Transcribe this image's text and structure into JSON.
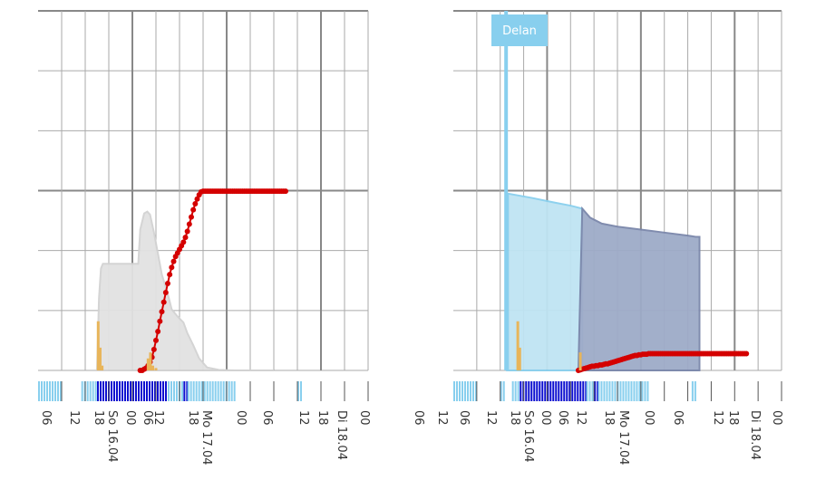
{
  "colors": {
    "grid_major": "#888888",
    "grid_minor": "#aaaaaa",
    "gray_area": "#e2e2e2",
    "gray_area_stroke": "#d2d2d2",
    "red_series": "#d40000",
    "orange_bars": "#e8b55a",
    "light_blue": "#88cfee",
    "light_blue_fill": "#bfe4f3",
    "slate_fill": "#9eabc8",
    "slate_stroke": "#7a86aa",
    "dark_blue": "#0d0fd0",
    "strip_light": "#88cfee"
  },
  "time_axis": {
    "tick_labels": [
      "06",
      "12",
      "18",
      "So 16.04",
      "00",
      "06",
      "12",
      "18",
      "Mo 17.04",
      "00",
      "06",
      "12",
      "18",
      "Di 18.04",
      "00",
      "06",
      "12"
    ]
  },
  "right_panel": {
    "badge_label": "Delan"
  },
  "chart_data": [
    {
      "type": "area",
      "title": "",
      "x_unit": "hours since 15.04 00:00",
      "xlim": [
        0,
        84
      ],
      "x_ticks": [
        6,
        12,
        18,
        24,
        30,
        36,
        42,
        48,
        54,
        60,
        66,
        72,
        78,
        84
      ],
      "x_major_ticks": [
        24,
        48,
        72
      ],
      "ylim": [
        0,
        6
      ],
      "series": [
        {
          "kind": "area",
          "x": [
            15,
            15.5,
            16,
            16.5,
            20,
            25.5,
            26,
            27,
            27.8,
            28.5,
            29.5,
            30.5,
            31.5,
            33,
            34,
            35.5,
            37,
            38,
            39.5,
            41,
            43,
            46,
            50,
            54,
            60
          ],
          "y": [
            0,
            1.2,
            1.7,
            1.78,
            1.78,
            1.78,
            2.35,
            2.62,
            2.65,
            2.6,
            2.3,
            1.95,
            1.6,
            1.28,
            1.02,
            0.9,
            0.8,
            0.62,
            0.42,
            0.2,
            0.05,
            0.01,
            0,
            0,
            0
          ]
        },
        {
          "kind": "line_markers",
          "x": [
            26,
            26.5,
            27,
            27.5,
            28,
            28.5,
            29,
            29.5,
            30,
            30.5,
            31,
            31.5,
            32,
            32.5,
            33,
            33.5,
            34,
            34.5,
            35,
            35.5,
            36,
            36.5,
            37,
            37.5,
            38,
            38.5,
            39,
            39.5,
            40,
            40.5,
            41,
            41.5,
            42,
            42.5,
            43,
            43.5,
            44,
            44.5,
            45,
            45.5,
            46,
            46.5,
            47,
            47.5,
            48,
            48.5,
            49,
            49.5,
            50,
            50.5,
            51,
            51.5,
            52,
            52.5,
            53,
            53.5,
            54,
            54.5,
            55,
            55.5,
            56,
            56.5,
            57,
            57.5,
            58,
            58.5,
            59,
            59.5,
            60,
            60.5,
            61,
            61.5,
            62,
            62.5,
            63
          ],
          "y": [
            0,
            0,
            0.02,
            0.04,
            0.08,
            0.14,
            0.22,
            0.35,
            0.5,
            0.65,
            0.82,
            0.98,
            1.14,
            1.3,
            1.45,
            1.6,
            1.72,
            1.82,
            1.9,
            1.96,
            2.02,
            2.08,
            2.14,
            2.22,
            2.32,
            2.44,
            2.56,
            2.68,
            2.78,
            2.86,
            2.93,
            2.98,
            2.99,
            2.99,
            2.99,
            2.99,
            2.99,
            2.99,
            2.99,
            2.99,
            2.99,
            2.99,
            2.99,
            2.99,
            2.99,
            2.99,
            2.99,
            2.99,
            2.99,
            2.99,
            2.99,
            2.99,
            2.99,
            2.99,
            2.99,
            2.99,
            2.99,
            2.99,
            2.99,
            2.99,
            2.99,
            2.99,
            2.99,
            2.99,
            2.99,
            2.99,
            2.99,
            2.99,
            2.99,
            2.99,
            2.99,
            2.99,
            2.99,
            2.99,
            2.99
          ]
        },
        {
          "kind": "bars",
          "x": [
            15.3,
            15.8,
            16.3,
            28.0,
            28.6,
            29.2,
            30.0
          ],
          "y": [
            0.82,
            0.38,
            0.08,
            0.2,
            0.3,
            0.08,
            0.04
          ]
        }
      ],
      "strip": {
        "segments": [
          {
            "from": 0,
            "to": 6,
            "level": "light"
          },
          {
            "from": 11,
            "to": 15,
            "level": "light"
          },
          {
            "from": 15,
            "to": 33,
            "level": "dark"
          },
          {
            "from": 33,
            "to": 37,
            "level": "light"
          },
          {
            "from": 37,
            "to": 38,
            "level": "dark"
          },
          {
            "from": 38,
            "to": 50,
            "level": "light"
          },
          {
            "from": 66,
            "to": 66.8,
            "level": "light"
          }
        ]
      }
    },
    {
      "type": "area",
      "title": "",
      "x_unit": "hours since 15.04 00:00",
      "xlim": [
        0,
        84
      ],
      "x_ticks": [
        6,
        12,
        18,
        24,
        30,
        36,
        42,
        48,
        54,
        60,
        66,
        72,
        78,
        84
      ],
      "x_major_ticks": [
        24,
        48,
        72
      ],
      "ylim": [
        0,
        6
      ],
      "series": [
        {
          "kind": "area",
          "x": [
            13.5,
            14,
            14,
            20,
            26,
            30,
            33
          ],
          "y": [
            0,
            0,
            2.95,
            2.88,
            2.8,
            2.75,
            2.7
          ],
          "close_to": [
            33,
            0
          ]
        },
        {
          "kind": "area",
          "x": [
            32,
            33,
            35,
            38,
            42,
            48,
            54,
            60,
            62,
            63,
            63
          ],
          "y": [
            0,
            2.7,
            2.55,
            2.45,
            2.4,
            2.35,
            2.3,
            2.25,
            2.23,
            2.23,
            0
          ]
        },
        {
          "kind": "spike",
          "x": [
            13.5,
            13.5
          ],
          "y": [
            0,
            6
          ]
        },
        {
          "kind": "line_markers",
          "x": [
            32,
            32.5,
            33,
            33.5,
            34,
            34.5,
            35,
            35.5,
            36,
            36.5,
            37,
            37.5,
            38,
            38.5,
            39,
            39.5,
            40,
            40.5,
            41,
            41.5,
            42,
            42.5,
            43,
            43.5,
            44,
            44.5,
            45,
            45.5,
            46,
            46.5,
            47,
            47.5,
            48,
            48.5,
            49,
            49.5,
            50,
            50.5,
            51,
            51.5,
            52,
            52.5,
            53,
            53.5,
            54,
            54.5,
            55,
            55.5,
            56,
            56.5,
            57,
            57.5,
            58,
            58.5,
            59,
            59.5,
            60,
            60.5,
            61,
            61.5,
            62,
            62.5,
            63,
            63.5,
            64,
            64.5,
            65,
            65.5,
            66,
            66.5,
            67,
            67.5,
            68,
            68.5,
            69,
            69.5,
            70,
            70.5,
            71,
            71.5,
            72,
            72.5,
            73,
            73.5,
            74,
            74.5,
            75
          ],
          "y": [
            0,
            0.01,
            0.02,
            0.03,
            0.04,
            0.05,
            0.06,
            0.07,
            0.07,
            0.08,
            0.08,
            0.09,
            0.09,
            0.1,
            0.11,
            0.11,
            0.12,
            0.13,
            0.14,
            0.15,
            0.16,
            0.17,
            0.18,
            0.19,
            0.2,
            0.21,
            0.22,
            0.23,
            0.24,
            0.25,
            0.25,
            0.26,
            0.26,
            0.27,
            0.27,
            0.27,
            0.28,
            0.28,
            0.28,
            0.28,
            0.28,
            0.28,
            0.28,
            0.28,
            0.28,
            0.28,
            0.28,
            0.28,
            0.28,
            0.28,
            0.28,
            0.28,
            0.28,
            0.28,
            0.28,
            0.28,
            0.28,
            0.28,
            0.28,
            0.28,
            0.28,
            0.28,
            0.28,
            0.28,
            0.28,
            0.28,
            0.28,
            0.28,
            0.28,
            0.28,
            0.28,
            0.28,
            0.28,
            0.28,
            0.28,
            0.28,
            0.28,
            0.28,
            0.28,
            0.28,
            0.28,
            0.28,
            0.28,
            0.28,
            0.28,
            0.28,
            0.28
          ]
        },
        {
          "kind": "bars",
          "x": [
            16.5,
            17,
            32.5
          ],
          "y": [
            0.82,
            0.38,
            0.3
          ]
        }
      ],
      "strip": {
        "segments": [
          {
            "from": 0,
            "to": 6,
            "level": "light"
          },
          {
            "from": 12,
            "to": 13,
            "level": "light"
          },
          {
            "from": 15,
            "to": 17,
            "level": "light"
          },
          {
            "from": 17,
            "to": 34,
            "level": "dark"
          },
          {
            "from": 34,
            "to": 36,
            "level": "light"
          },
          {
            "from": 36,
            "to": 37,
            "level": "dark"
          },
          {
            "from": 37,
            "to": 50,
            "level": "light"
          },
          {
            "from": 61,
            "to": 61.8,
            "level": "light"
          }
        ]
      }
    }
  ]
}
